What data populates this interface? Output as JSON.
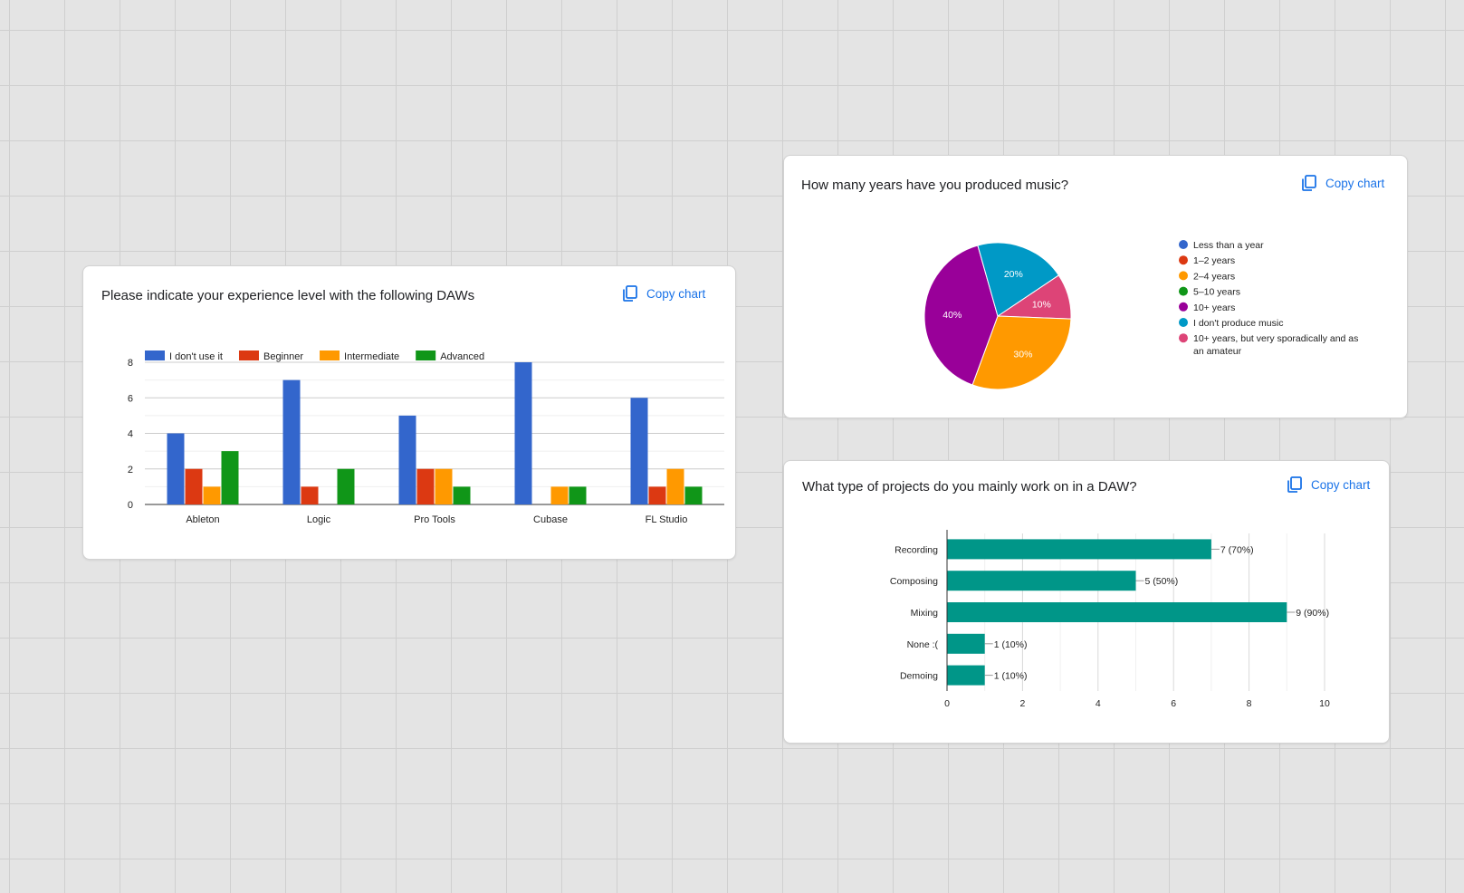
{
  "colors": {
    "link": "#1a73e8",
    "blue": "#3366cc",
    "red": "#dc3912",
    "orange": "#ff9900",
    "green": "#109618",
    "purple": "#990099",
    "cyan": "#0099c6",
    "pink": "#dd4477",
    "teal": "#009688"
  },
  "daw_card": {
    "title": "Please indicate your experience level with the following DAWs",
    "copy_label": "Copy chart",
    "copy_icon": "copy-icon"
  },
  "years_card": {
    "title": "How many years have you produced music?",
    "copy_label": "Copy chart",
    "copy_icon": "copy-icon"
  },
  "projects_card": {
    "title": "What type of projects do you mainly work on in a DAW?",
    "copy_label": "Copy chart",
    "copy_icon": "copy-icon"
  },
  "chart_data": [
    {
      "type": "bar",
      "title": "Please indicate your experience level with the following DAWs",
      "categories": [
        "Ableton",
        "Logic",
        "Pro Tools",
        "Cubase",
        "FL Studio"
      ],
      "series": [
        {
          "name": "I don't use it",
          "values": [
            4,
            7,
            5,
            8,
            6
          ],
          "color": "#3366cc"
        },
        {
          "name": "Beginner",
          "values": [
            2,
            1,
            2,
            0,
            1
          ],
          "color": "#dc3912"
        },
        {
          "name": "Intermediate",
          "values": [
            1,
            0,
            2,
            1,
            2
          ],
          "color": "#ff9900"
        },
        {
          "name": "Advanced",
          "values": [
            3,
            2,
            1,
            1,
            1
          ],
          "color": "#109618"
        }
      ],
      "ylim": [
        0,
        8
      ],
      "yticks": [
        0,
        2,
        4,
        6,
        8
      ],
      "grid": true,
      "legend": "top"
    },
    {
      "type": "pie",
      "title": "How many years have you produced music?",
      "labels": [
        "Less than a year",
        "1–2 years",
        "2–4 years",
        "5–10 years",
        "10+ years",
        "I don't produce music",
        "10+ years, but very sporadically and as an amateur"
      ],
      "values": [
        0,
        0,
        30,
        0,
        40,
        20,
        10
      ],
      "slice_labels": [
        "",
        "",
        "30%",
        "",
        "40%",
        "20%",
        "10%"
      ],
      "colors": [
        "#3366cc",
        "#dc3912",
        "#ff9900",
        "#109618",
        "#990099",
        "#0099c6",
        "#dd4477"
      ],
      "legend": "right"
    },
    {
      "type": "bar",
      "orientation": "horizontal",
      "title": "What type of projects do you mainly work on in a DAW?",
      "categories": [
        "Recording",
        "Composing",
        "Mixing",
        "None :(",
        "Demoing"
      ],
      "values": [
        7,
        5,
        9,
        1,
        1
      ],
      "value_labels": [
        "7 (70%)",
        "5 (50%)",
        "9 (90%)",
        "1 (10%)",
        "1 (10%)"
      ],
      "xlim": [
        0,
        10
      ],
      "xticks": [
        0,
        2,
        4,
        6,
        8,
        10
      ],
      "color": "#009688",
      "grid": true
    }
  ]
}
